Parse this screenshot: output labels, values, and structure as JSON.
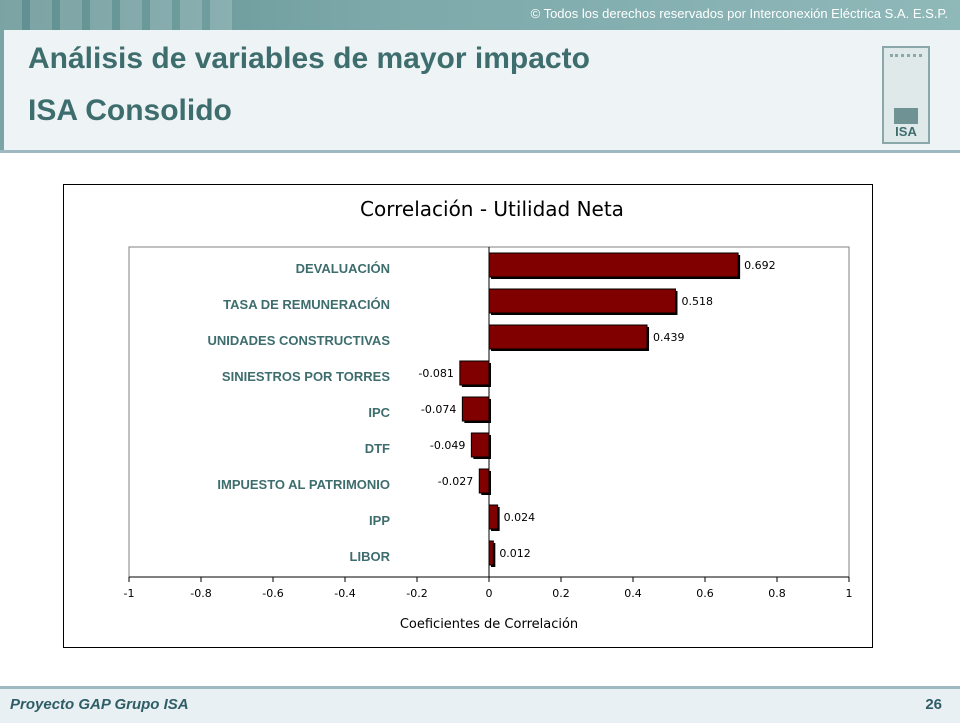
{
  "header": {
    "copyright": "© Todos los derechos reservados por Interconexión Eléctrica S.A. E.S.P.",
    "title_line1": "Análisis de variables de mayor impacto",
    "title_line2": "ISA Consolido",
    "logo_text": "ISA"
  },
  "chart_data": {
    "type": "bar",
    "orientation": "horizontal",
    "title": "Correlación - Utilidad Neta",
    "xlabel": "Coeficientes de Correlación",
    "xlim": [
      -1,
      1
    ],
    "xticks": [
      -1,
      -0.8,
      -0.6,
      -0.4,
      -0.2,
      0,
      0.2,
      0.4,
      0.6,
      0.8,
      1
    ],
    "categories": [
      "DEVALUACIÓN",
      "TASA DE REMUNERACIÓN",
      "UNIDADES CONSTRUCTIVAS",
      "SINIESTROS POR TORRES",
      "IPC",
      "DTF",
      "IMPUESTO AL PATRIMONIO",
      "IPP",
      "LIBOR"
    ],
    "values": [
      0.692,
      0.518,
      0.439,
      -0.081,
      -0.074,
      -0.049,
      -0.027,
      0.024,
      0.012
    ],
    "value_labels": [
      "0.692",
      "0.518",
      "0.439",
      "-0.081",
      "-0.074",
      "-0.049",
      "-0.027",
      "0.024",
      "0.012"
    ],
    "bar_color": "#800000",
    "label_color": "#3e6d6e",
    "grid": false
  },
  "footer": {
    "project": "Proyecto GAP Grupo ISA",
    "page_number": "26"
  }
}
